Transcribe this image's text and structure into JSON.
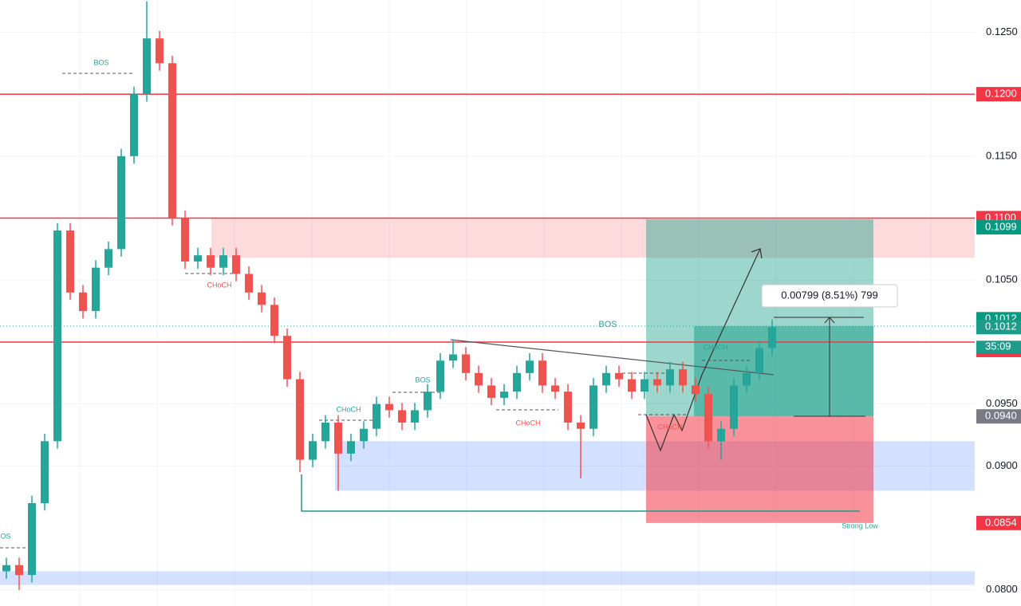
{
  "chart_data": {
    "type": "candlestick",
    "open": [
      0.0815,
      0.082,
      0.0812,
      0.087,
      0.092,
      0.109,
      0.104,
      0.1025,
      0.106,
      0.1075,
      0.115,
      0.12,
      0.1245,
      0.1225,
      0.11,
      0.1065,
      0.107,
      0.106,
      0.107,
      0.1055,
      0.104,
      0.103,
      0.1005,
      0.097,
      0.0905,
      0.092,
      0.0935,
      0.091,
      0.092,
      0.093,
      0.095,
      0.0945,
      0.0935,
      0.0945,
      0.096,
      0.0985,
      0.099,
      0.0975,
      0.0965,
      0.0955,
      0.096,
      0.0975,
      0.0985,
      0.0965,
      0.096,
      0.0935,
      0.093,
      0.0965,
      0.0975,
      0.097,
      0.096,
      0.097,
      0.0965,
      0.0978,
      0.0965,
      0.0958,
      0.092,
      0.093,
      0.0965,
      0.0975,
      0.0995
    ],
    "high": [
      0.0826,
      0.0826,
      0.0876,
      0.0926,
      0.1096,
      0.1096,
      0.1046,
      0.1066,
      0.1081,
      0.1156,
      0.1206,
      0.1275,
      0.1251,
      0.1231,
      0.1106,
      0.1076,
      0.1076,
      0.1076,
      0.1076,
      0.1061,
      0.1046,
      0.1036,
      0.1011,
      0.0976,
      0.0926,
      0.0941,
      0.0941,
      0.0926,
      0.0936,
      0.0956,
      0.0956,
      0.0951,
      0.0951,
      0.0966,
      0.0991,
      0.1002,
      0.0996,
      0.0981,
      0.0971,
      0.0966,
      0.0981,
      0.0991,
      0.0991,
      0.0971,
      0.0966,
      0.0941,
      0.0971,
      0.0981,
      0.0981,
      0.0976,
      0.0976,
      0.0976,
      0.0984,
      0.0984,
      0.0971,
      0.0964,
      0.0936,
      0.0971,
      0.0981,
      0.1001,
      0.1018
    ],
    "low": [
      0.0809,
      0.08,
      0.0806,
      0.0864,
      0.0914,
      0.1034,
      0.1019,
      0.1019,
      0.1054,
      0.1069,
      0.1144,
      0.1194,
      0.1219,
      0.1094,
      0.1059,
      0.1059,
      0.1054,
      0.1054,
      0.1049,
      0.1034,
      0.1024,
      0.0999,
      0.0964,
      0.0895,
      0.0899,
      0.0914,
      0.088,
      0.0904,
      0.0914,
      0.0924,
      0.0939,
      0.0929,
      0.0929,
      0.0939,
      0.0954,
      0.0979,
      0.0969,
      0.0959,
      0.0949,
      0.0949,
      0.0954,
      0.0969,
      0.0959,
      0.0954,
      0.0929,
      0.089,
      0.0924,
      0.0959,
      0.0964,
      0.0954,
      0.0954,
      0.0959,
      0.0959,
      0.0959,
      0.0952,
      0.0914,
      0.0905,
      0.0924,
      0.0959,
      0.0969,
      0.0989
    ],
    "close": [
      0.082,
      0.0812,
      0.087,
      0.092,
      0.109,
      0.104,
      0.1025,
      0.106,
      0.1075,
      0.115,
      0.12,
      0.1245,
      0.1225,
      0.11,
      0.1065,
      0.107,
      0.106,
      0.107,
      0.1055,
      0.104,
      0.103,
      0.1005,
      0.097,
      0.0905,
      0.092,
      0.0935,
      0.091,
      0.092,
      0.093,
      0.095,
      0.0945,
      0.0935,
      0.0945,
      0.096,
      0.0985,
      0.099,
      0.0975,
      0.0965,
      0.0955,
      0.096,
      0.0975,
      0.0985,
      0.0965,
      0.096,
      0.0935,
      0.093,
      0.0965,
      0.0975,
      0.097,
      0.096,
      0.097,
      0.0965,
      0.0978,
      0.0965,
      0.0958,
      0.092,
      0.093,
      0.0965,
      0.0975,
      0.0995,
      0.1012
    ],
    "up_color": "#26a69a",
    "down_color": "#ef5350",
    "ylim": [
      0.0787,
      0.1276
    ],
    "yticks": [
      {
        "value": 0.125,
        "label": "0.1250"
      },
      {
        "value": 0.115,
        "label": "0.1150"
      },
      {
        "value": 0.105,
        "label": "0.1050"
      },
      {
        "value": 0.095,
        "label": "0.0950"
      },
      {
        "value": 0.09,
        "label": "0.0900"
      },
      {
        "value": 0.08,
        "label": "0.0800"
      }
    ],
    "grid": true,
    "levels": [
      0.12,
      0.11,
      0.1
    ],
    "level_color": "#f23645",
    "zones": [
      {
        "low": 0.1068,
        "high": 0.11,
        "color": "rgba(242,54,69,0.18)"
      },
      {
        "low": 0.088,
        "high": 0.092,
        "color": "rgba(41,98,255,0.2)"
      },
      {
        "low": 0.0804,
        "high": 0.0815,
        "color": "rgba(41,98,255,0.2)"
      }
    ],
    "position": {
      "target": 0.1099,
      "entry": 0.094,
      "stop": 0.0854
    },
    "tags": [
      {
        "value": 0.12,
        "label": "0.1200",
        "color": "#f23645"
      },
      {
        "value": 0.11,
        "label": "0.1100",
        "color": "#f23645"
      },
      {
        "value": 0.1099,
        "label": "0.1099",
        "color": "#089981"
      },
      {
        "value": 0.1012,
        "label": "0.1012",
        "color": "#089981"
      },
      {
        "value": 0.1012,
        "label": "0.1012",
        "color": "#1e9b8a"
      },
      {
        "value": 0.1,
        "label": "0.1000",
        "color": "#f23645"
      },
      {
        "value": 0.094,
        "label": "0.0940",
        "color": "#787b86"
      },
      {
        "value": 0.0854,
        "label": "0.0854",
        "color": "#f23645"
      }
    ],
    "countdown": "35:09",
    "annotations": [
      "BOS",
      "CHoCH",
      "CHoCH",
      "BOS",
      "CHoCH",
      "BOS",
      "CHoCH",
      "CHoCH",
      "Strong Low",
      "BOS"
    ],
    "measure": "0.00799 (8.51%) 799"
  }
}
